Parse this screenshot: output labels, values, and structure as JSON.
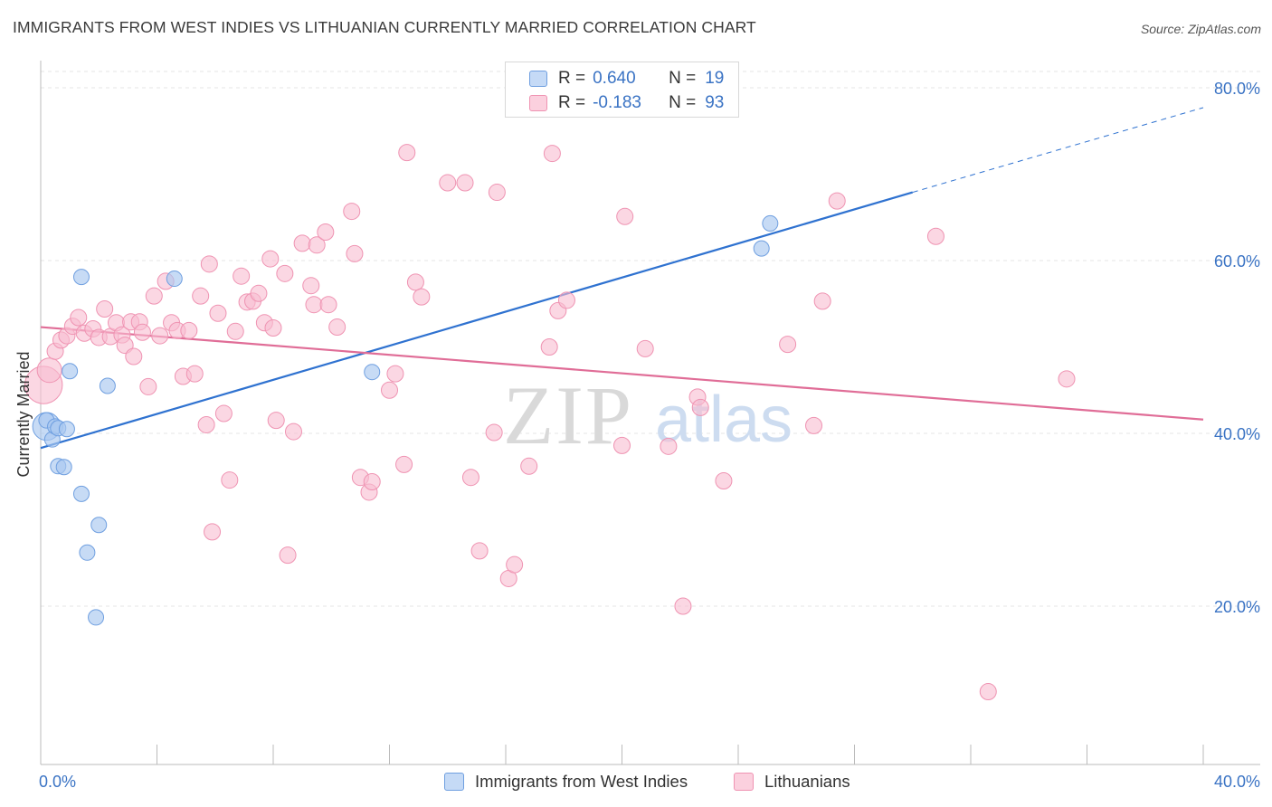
{
  "header": {
    "title": "IMMIGRANTS FROM WEST INDIES VS LITHUANIAN CURRENTLY MARRIED CORRELATION CHART",
    "source": "Source: ZipAtlas.com"
  },
  "watermark": {
    "zip": "ZIP",
    "atlas": "atlas"
  },
  "legend": {
    "rows": [
      {
        "r_label": "R =",
        "r_value": "0.640",
        "n_label": "N =",
        "n_value": "19"
      },
      {
        "r_label": "R =",
        "r_value": "-0.183",
        "n_label": "N =",
        "n_value": "93"
      }
    ]
  },
  "chart_data": {
    "type": "scatter",
    "title": "IMMIGRANTS FROM WEST INDIES VS LITHUANIAN CURRENTLY MARRIED CORRELATION CHART",
    "xlabel": "",
    "ylabel": "Currently Married",
    "xlim": [
      0,
      40
    ],
    "ylim": [
      0,
      82
    ],
    "x_tick_labels": [
      "0.0%",
      "40.0%"
    ],
    "y_ticks": [
      20,
      40,
      60,
      80
    ],
    "y_tick_labels": [
      "20.0%",
      "40.0%",
      "60.0%",
      "80.0%"
    ],
    "grid": true,
    "colors": {
      "west_indies_fill": "#a9c8f0",
      "west_indies_stroke": "#6f9fe0",
      "west_indies_line": "#2f72d0",
      "lithuanian_fill": "#f8bdd0",
      "lithuanian_stroke": "#ef93b2",
      "lithuanian_line": "#e06d97",
      "tick_label": "#3a73c4",
      "grid": "#e5e5e5"
    },
    "series": [
      {
        "name": "Immigrants from West Indies",
        "r": 0.64,
        "n": 19,
        "trend": {
          "x0": 0,
          "y0": 38.3,
          "x1": 30.0,
          "y1": 67.9,
          "dash_x1": 40.0,
          "dash_y1": 77.7
        },
        "points": [
          {
            "x": 0.2,
            "y": 40.8,
            "s": 1.8
          },
          {
            "x": 0.2,
            "y": 41.5,
            "s": 1
          },
          {
            "x": 0.4,
            "y": 39.3,
            "s": 1
          },
          {
            "x": 0.5,
            "y": 40.8,
            "s": 1
          },
          {
            "x": 0.6,
            "y": 40.6,
            "s": 1
          },
          {
            "x": 0.9,
            "y": 40.5,
            "s": 1
          },
          {
            "x": 0.6,
            "y": 36.2,
            "s": 1
          },
          {
            "x": 0.8,
            "y": 36.1,
            "s": 1
          },
          {
            "x": 1.0,
            "y": 47.2,
            "s": 1
          },
          {
            "x": 1.4,
            "y": 58.1,
            "s": 1
          },
          {
            "x": 1.4,
            "y": 33.0,
            "s": 1
          },
          {
            "x": 1.6,
            "y": 26.2,
            "s": 1
          },
          {
            "x": 1.9,
            "y": 18.7,
            "s": 1
          },
          {
            "x": 2.0,
            "y": 29.4,
            "s": 1
          },
          {
            "x": 2.3,
            "y": 45.5,
            "s": 1
          },
          {
            "x": 4.6,
            "y": 57.9,
            "s": 1
          },
          {
            "x": 11.4,
            "y": 47.1,
            "s": 1
          },
          {
            "x": 24.8,
            "y": 61.4,
            "s": 1
          },
          {
            "x": 25.1,
            "y": 64.3,
            "s": 1
          }
        ]
      },
      {
        "name": "Lithuanians",
        "r": -0.183,
        "n": 93,
        "trend": {
          "x0": 0,
          "y0": 52.3,
          "x1": 40.0,
          "y1": 41.6
        },
        "points": [
          {
            "x": 0.1,
            "y": 45.6,
            "s": 2.3
          },
          {
            "x": 0.3,
            "y": 47.3,
            "s": 1.5
          },
          {
            "x": 0.5,
            "y": 49.5,
            "s": 1
          },
          {
            "x": 0.7,
            "y": 50.8,
            "s": 1
          },
          {
            "x": 0.9,
            "y": 51.3,
            "s": 1
          },
          {
            "x": 1.1,
            "y": 52.4,
            "s": 1
          },
          {
            "x": 1.3,
            "y": 53.4,
            "s": 1
          },
          {
            "x": 1.5,
            "y": 51.6,
            "s": 1
          },
          {
            "x": 1.8,
            "y": 52.1,
            "s": 1
          },
          {
            "x": 2.0,
            "y": 51.1,
            "s": 1
          },
          {
            "x": 2.2,
            "y": 54.4,
            "s": 1
          },
          {
            "x": 2.4,
            "y": 51.2,
            "s": 1
          },
          {
            "x": 2.6,
            "y": 52.8,
            "s": 1
          },
          {
            "x": 2.8,
            "y": 51.4,
            "s": 1
          },
          {
            "x": 2.9,
            "y": 50.2,
            "s": 1
          },
          {
            "x": 3.1,
            "y": 52.9,
            "s": 1
          },
          {
            "x": 3.2,
            "y": 48.9,
            "s": 1
          },
          {
            "x": 3.4,
            "y": 52.9,
            "s": 1
          },
          {
            "x": 3.5,
            "y": 51.7,
            "s": 1
          },
          {
            "x": 3.7,
            "y": 45.4,
            "s": 1
          },
          {
            "x": 3.9,
            "y": 55.9,
            "s": 1
          },
          {
            "x": 4.1,
            "y": 51.3,
            "s": 1
          },
          {
            "x": 4.3,
            "y": 57.6,
            "s": 1
          },
          {
            "x": 4.5,
            "y": 52.8,
            "s": 1
          },
          {
            "x": 4.7,
            "y": 51.9,
            "s": 1
          },
          {
            "x": 4.9,
            "y": 46.6,
            "s": 1
          },
          {
            "x": 5.1,
            "y": 51.9,
            "s": 1
          },
          {
            "x": 5.3,
            "y": 46.9,
            "s": 1
          },
          {
            "x": 5.5,
            "y": 55.9,
            "s": 1
          },
          {
            "x": 5.7,
            "y": 41.0,
            "s": 1
          },
          {
            "x": 5.8,
            "y": 59.6,
            "s": 1
          },
          {
            "x": 5.9,
            "y": 28.6,
            "s": 1
          },
          {
            "x": 6.1,
            "y": 53.9,
            "s": 1
          },
          {
            "x": 6.3,
            "y": 42.3,
            "s": 1
          },
          {
            "x": 6.5,
            "y": 34.6,
            "s": 1
          },
          {
            "x": 6.7,
            "y": 51.8,
            "s": 1
          },
          {
            "x": 6.9,
            "y": 58.2,
            "s": 1
          },
          {
            "x": 7.1,
            "y": 55.2,
            "s": 1
          },
          {
            "x": 7.3,
            "y": 55.3,
            "s": 1
          },
          {
            "x": 7.5,
            "y": 56.2,
            "s": 1
          },
          {
            "x": 7.7,
            "y": 52.8,
            "s": 1
          },
          {
            "x": 7.9,
            "y": 60.2,
            "s": 1
          },
          {
            "x": 8.0,
            "y": 52.2,
            "s": 1
          },
          {
            "x": 8.1,
            "y": 41.5,
            "s": 1
          },
          {
            "x": 8.4,
            "y": 58.5,
            "s": 1
          },
          {
            "x": 8.5,
            "y": 25.9,
            "s": 1
          },
          {
            "x": 8.7,
            "y": 40.2,
            "s": 1
          },
          {
            "x": 9.0,
            "y": 62.0,
            "s": 1
          },
          {
            "x": 9.3,
            "y": 57.1,
            "s": 1
          },
          {
            "x": 9.4,
            "y": 54.9,
            "s": 1
          },
          {
            "x": 9.5,
            "y": 61.8,
            "s": 1
          },
          {
            "x": 9.8,
            "y": 63.3,
            "s": 1
          },
          {
            "x": 9.9,
            "y": 54.9,
            "s": 1
          },
          {
            "x": 10.2,
            "y": 52.3,
            "s": 1
          },
          {
            "x": 10.7,
            "y": 65.7,
            "s": 1
          },
          {
            "x": 10.8,
            "y": 60.8,
            "s": 1
          },
          {
            "x": 11.0,
            "y": 34.9,
            "s": 1
          },
          {
            "x": 11.3,
            "y": 33.2,
            "s": 1
          },
          {
            "x": 11.4,
            "y": 34.4,
            "s": 1
          },
          {
            "x": 12.0,
            "y": 45.0,
            "s": 1
          },
          {
            "x": 12.2,
            "y": 46.9,
            "s": 1
          },
          {
            "x": 12.5,
            "y": 36.4,
            "s": 1
          },
          {
            "x": 12.6,
            "y": 72.5,
            "s": 1
          },
          {
            "x": 12.9,
            "y": 57.5,
            "s": 1
          },
          {
            "x": 13.1,
            "y": 55.8,
            "s": 1
          },
          {
            "x": 14.0,
            "y": 69.0,
            "s": 1
          },
          {
            "x": 14.6,
            "y": 69.0,
            "s": 1
          },
          {
            "x": 14.8,
            "y": 34.9,
            "s": 1
          },
          {
            "x": 15.1,
            "y": 26.4,
            "s": 1
          },
          {
            "x": 15.6,
            "y": 40.1,
            "s": 1
          },
          {
            "x": 15.7,
            "y": 67.9,
            "s": 1
          },
          {
            "x": 16.1,
            "y": 23.2,
            "s": 1
          },
          {
            "x": 16.3,
            "y": 24.8,
            "s": 1
          },
          {
            "x": 16.8,
            "y": 36.2,
            "s": 1
          },
          {
            "x": 17.5,
            "y": 50.0,
            "s": 1
          },
          {
            "x": 17.6,
            "y": 72.4,
            "s": 1
          },
          {
            "x": 17.8,
            "y": 54.2,
            "s": 1
          },
          {
            "x": 18.1,
            "y": 55.4,
            "s": 1
          },
          {
            "x": 20.0,
            "y": 38.6,
            "s": 1
          },
          {
            "x": 20.1,
            "y": 65.1,
            "s": 1
          },
          {
            "x": 20.8,
            "y": 49.8,
            "s": 1
          },
          {
            "x": 21.6,
            "y": 38.5,
            "s": 1
          },
          {
            "x": 22.1,
            "y": 20.0,
            "s": 1
          },
          {
            "x": 22.6,
            "y": 44.2,
            "s": 1
          },
          {
            "x": 22.7,
            "y": 43.0,
            "s": 1
          },
          {
            "x": 23.5,
            "y": 34.5,
            "s": 1
          },
          {
            "x": 25.7,
            "y": 50.3,
            "s": 1
          },
          {
            "x": 26.6,
            "y": 40.9,
            "s": 1
          },
          {
            "x": 26.9,
            "y": 55.3,
            "s": 1
          },
          {
            "x": 27.4,
            "y": 66.9,
            "s": 1
          },
          {
            "x": 30.8,
            "y": 62.8,
            "s": 1
          },
          {
            "x": 32.6,
            "y": 10.1,
            "s": 1
          },
          {
            "x": 35.3,
            "y": 46.3,
            "s": 1
          }
        ]
      }
    ]
  },
  "bottom_legend": {
    "items": [
      {
        "label": "Immigrants from West Indies"
      },
      {
        "label": "Lithuanians"
      }
    ]
  }
}
